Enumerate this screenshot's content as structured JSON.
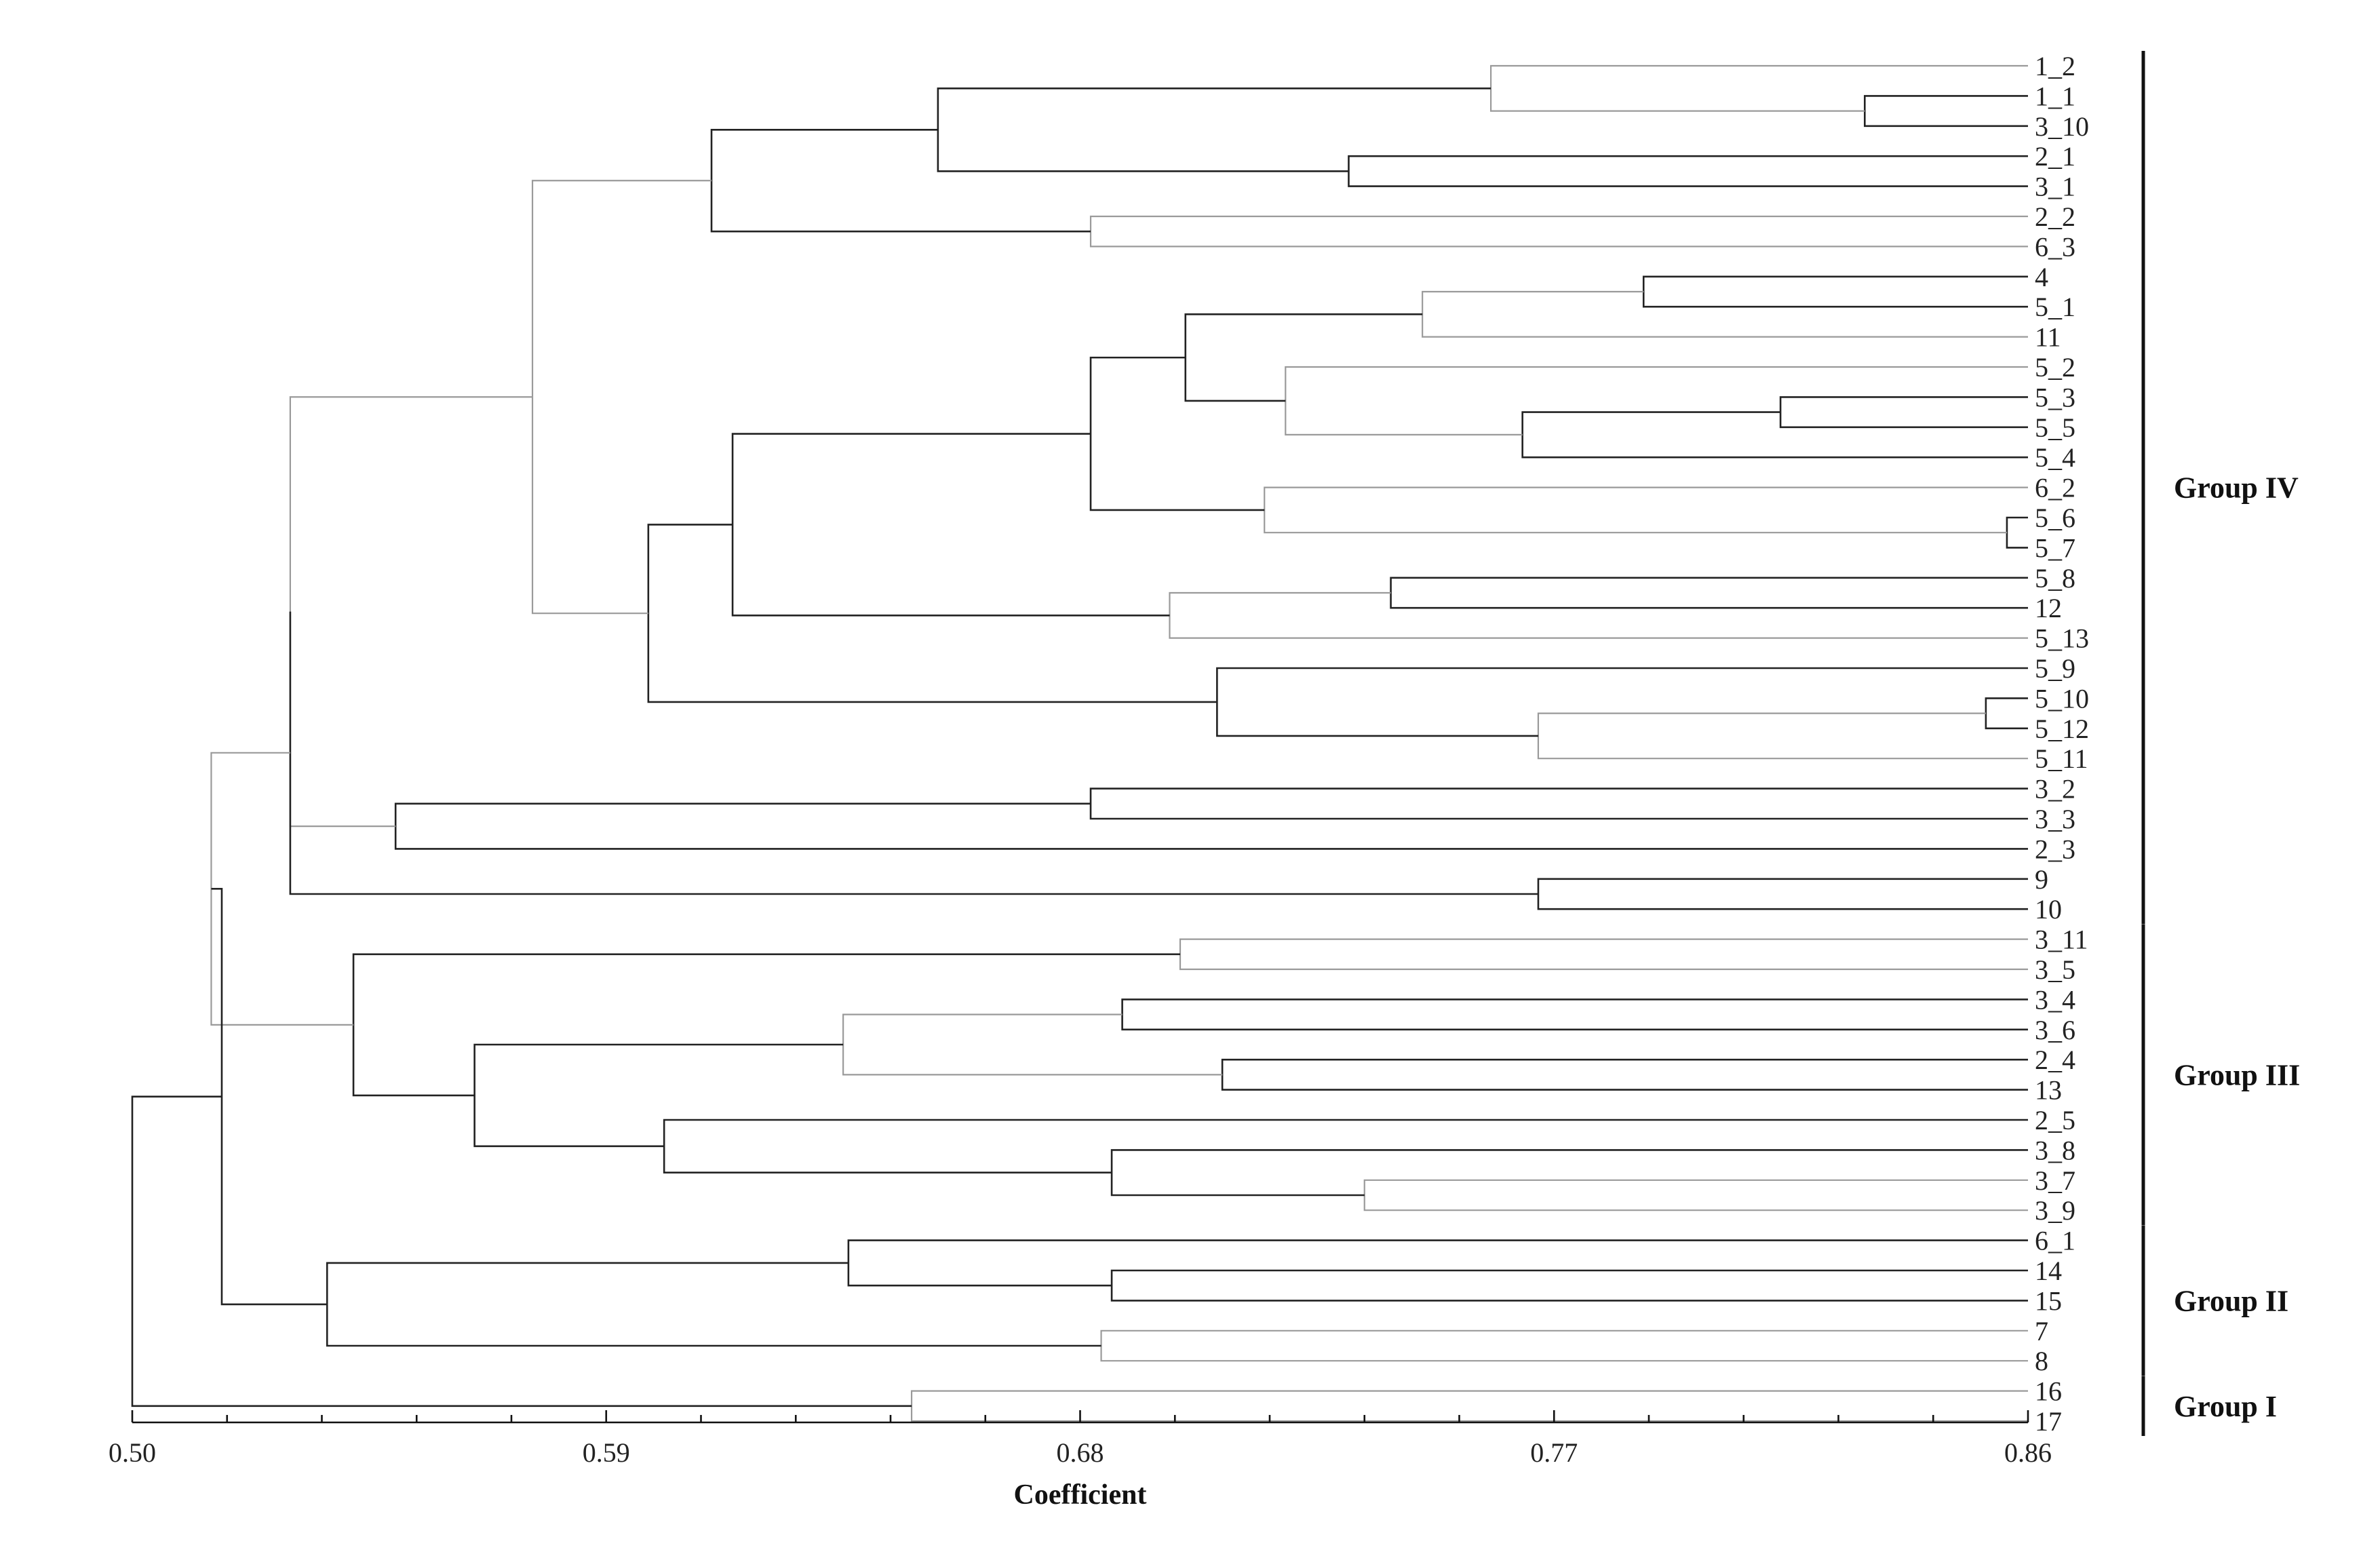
{
  "chart_data": {
    "type": "dendrogram",
    "xlabel": "Coefficient",
    "xlim": [
      0.5,
      0.86
    ],
    "x_ticks": [
      "0.50",
      "0.59",
      "0.68",
      "0.77",
      "0.86"
    ],
    "leaves": [
      "1_2",
      "1_1",
      "3_10",
      "2_1",
      "3_1",
      "2_2",
      "6_3",
      "4",
      "5_1",
      "11",
      "5_2",
      "5_3",
      "5_5",
      "5_4",
      "6_2",
      "5_6",
      "5_7",
      "5_8",
      "12",
      "5_13",
      "5_9",
      "5_10",
      "5_12",
      "5_11",
      "3_2",
      "3_3",
      "2_3",
      "9",
      "10",
      "3_11",
      "3_5",
      "3_4",
      "3_6",
      "2_4",
      "13",
      "2_5",
      "3_8",
      "3_7",
      "3_9",
      "6_1",
      "14",
      "15",
      "7",
      "8",
      "16",
      "17"
    ],
    "groups": [
      {
        "name": "Group IV",
        "first_leaf": "1_2",
        "last_leaf": "10"
      },
      {
        "name": "Group III",
        "first_leaf": "3_11",
        "last_leaf": "3_9"
      },
      {
        "name": "Group II",
        "first_leaf": "6_1",
        "last_leaf": "8"
      },
      {
        "name": "Group I",
        "first_leaf": "16",
        "last_leaf": "17"
      }
    ],
    "merges": [
      {
        "a": "1_1",
        "b": "3_10",
        "h": 0.829,
        "id": "n1"
      },
      {
        "a": "1_2",
        "b": "n1",
        "h": 0.758,
        "id": "n2"
      },
      {
        "a": "2_1",
        "b": "3_1",
        "h": 0.731,
        "id": "n3"
      },
      {
        "a": "n2",
        "b": "n3",
        "h": 0.653,
        "id": "n4"
      },
      {
        "a": "2_2",
        "b": "6_3",
        "h": 0.682,
        "id": "n5"
      },
      {
        "a": "n4",
        "b": "n5",
        "h": 0.61,
        "id": "n6"
      },
      {
        "a": "4",
        "b": "5_1",
        "h": 0.787,
        "id": "n7"
      },
      {
        "a": "n7",
        "b": "11",
        "h": 0.745,
        "id": "n8"
      },
      {
        "a": "5_3",
        "b": "5_5",
        "h": 0.813,
        "id": "n9"
      },
      {
        "a": "n9",
        "b": "5_4",
        "h": 0.764,
        "id": "n10"
      },
      {
        "a": "5_2",
        "b": "n10",
        "h": 0.719,
        "id": "n11"
      },
      {
        "a": "n8",
        "b": "n11",
        "h": 0.7,
        "id": "n12"
      },
      {
        "a": "5_6",
        "b": "5_7",
        "h": 0.856,
        "id": "n13"
      },
      {
        "a": "6_2",
        "b": "n13",
        "h": 0.715,
        "id": "n14"
      },
      {
        "a": "n12",
        "b": "n14",
        "h": 0.682,
        "id": "n15"
      },
      {
        "a": "5_8",
        "b": "12",
        "h": 0.739,
        "id": "n16"
      },
      {
        "a": "n16",
        "b": "5_13",
        "h": 0.697,
        "id": "n17"
      },
      {
        "a": "n15",
        "b": "n17",
        "h": 0.614,
        "id": "n18"
      },
      {
        "a": "5_10",
        "b": "5_12",
        "h": 0.852,
        "id": "n19"
      },
      {
        "a": "n19",
        "b": "5_11",
        "h": 0.767,
        "id": "n20"
      },
      {
        "a": "5_9",
        "b": "n20",
        "h": 0.706,
        "id": "n21"
      },
      {
        "a": "n18",
        "b": "n21",
        "h": 0.598,
        "id": "n22"
      },
      {
        "a": "n6",
        "b": "n22",
        "h": 0.576,
        "id": "n23"
      },
      {
        "a": "3_2",
        "b": "3_3",
        "h": 0.682,
        "id": "n24"
      },
      {
        "a": "n24",
        "b": "2_3",
        "h": 0.55,
        "id": "n25"
      },
      {
        "a": "n23",
        "b": "n25",
        "h": 0.53,
        "id": "n26"
      },
      {
        "a": "9",
        "b": "10",
        "h": 0.767,
        "id": "n27"
      },
      {
        "a": "n26",
        "b": "n27",
        "h": 0.53,
        "id": "n28"
      },
      {
        "a": "3_11",
        "b": "3_5",
        "h": 0.699,
        "id": "n29"
      },
      {
        "a": "3_4",
        "b": "3_6",
        "h": 0.688,
        "id": "n30"
      },
      {
        "a": "2_4",
        "b": "13",
        "h": 0.707,
        "id": "n31"
      },
      {
        "a": "3_7",
        "b": "3_9",
        "h": 0.734,
        "id": "n32"
      },
      {
        "a": "3_8",
        "b": "n32",
        "h": 0.686,
        "id": "n33"
      },
      {
        "a": "2_5",
        "b": "n33",
        "h": 0.601,
        "id": "n34"
      },
      {
        "a": "n30",
        "b": "n31",
        "h": 0.635,
        "id": "n35"
      },
      {
        "a": "n35",
        "b": "n34",
        "h": 0.565,
        "id": "n36"
      },
      {
        "a": "n29",
        "b": "n36",
        "h": 0.542,
        "id": "n37"
      },
      {
        "a": "n28",
        "b": "n37",
        "h": 0.515,
        "id": "n38"
      },
      {
        "a": "14",
        "b": "15",
        "h": 0.686,
        "id": "n39"
      },
      {
        "a": "6_1",
        "b": "n39",
        "h": 0.636,
        "id": "n40"
      },
      {
        "a": "7",
        "b": "8",
        "h": 0.684,
        "id": "n41"
      },
      {
        "a": "n40",
        "b": "n41",
        "h": 0.537,
        "id": "n42"
      },
      {
        "a": "n38",
        "b": "n42",
        "h": 0.517,
        "id": "n43"
      },
      {
        "a": "16",
        "b": "17",
        "h": 0.648,
        "id": "n44"
      },
      {
        "a": "n43",
        "b": "n44",
        "h": 0.5,
        "id": "n45"
      }
    ]
  }
}
